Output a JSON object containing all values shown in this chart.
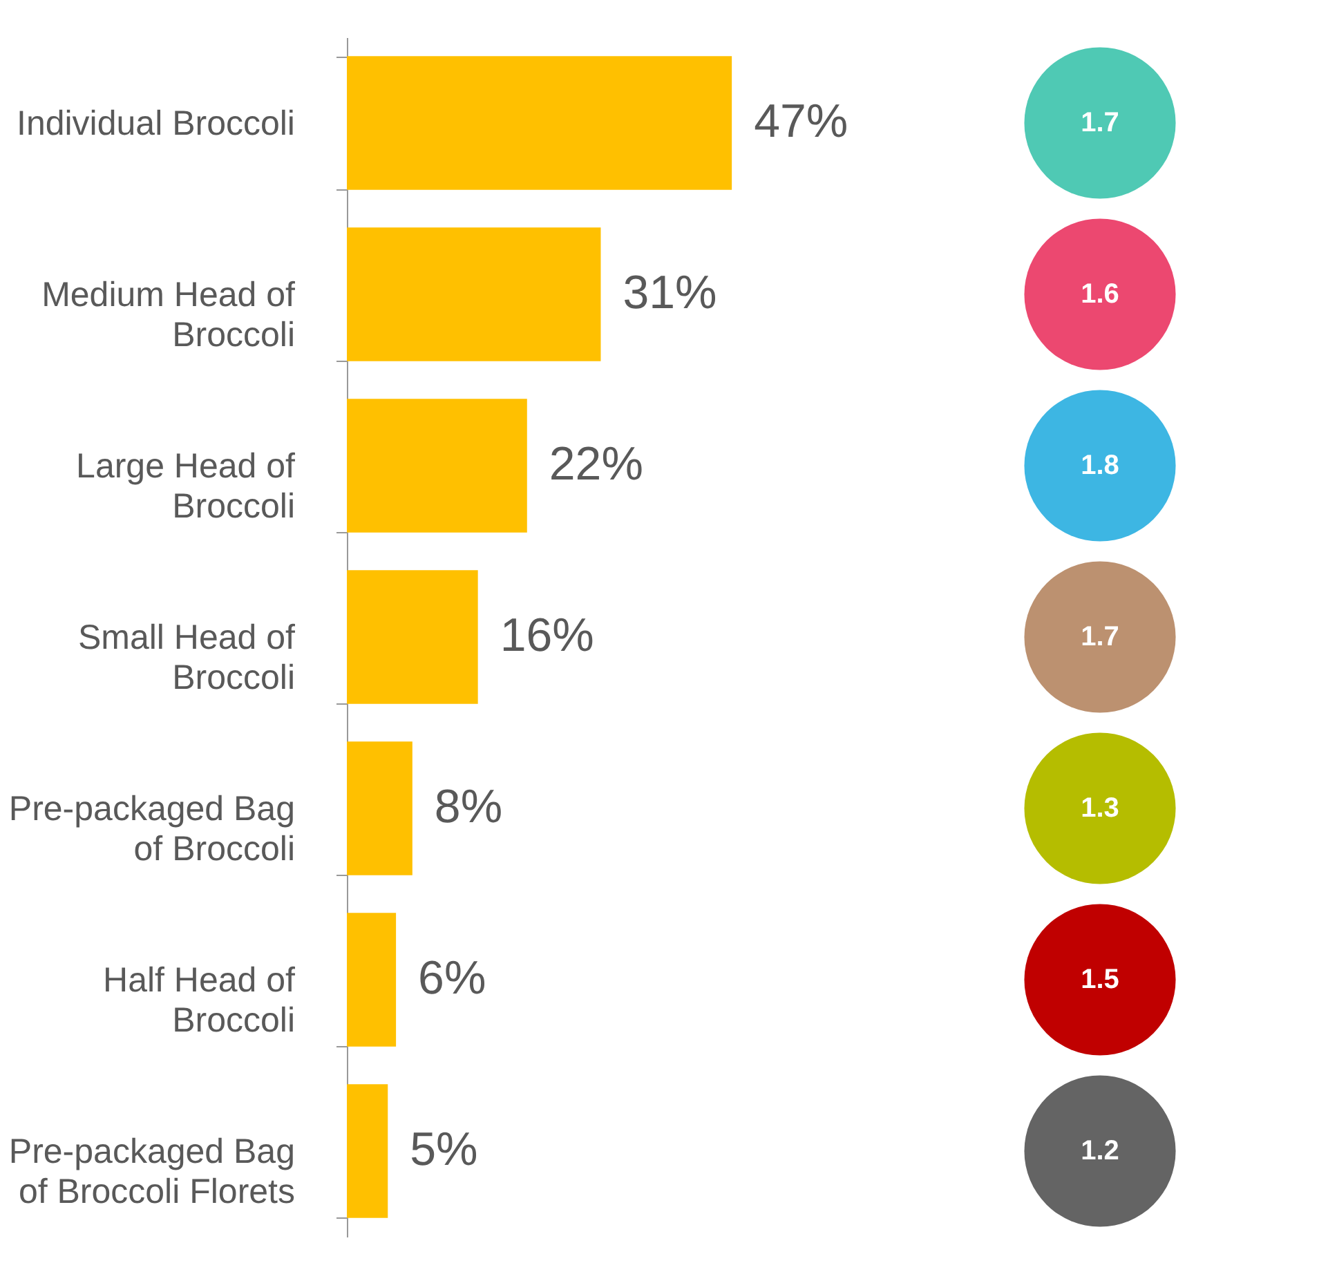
{
  "chart_data": [
    {
      "type": "bar",
      "orientation": "horizontal",
      "categories": [
        "Individual Broccoli",
        "Medium Head of\nBroccoli",
        "Large Head of\nBroccoli",
        "Small Head of\nBroccoli",
        "Pre-packaged Bag\nof Broccoli",
        "Half Head of\nBroccoli",
        "Pre-packaged Bag\nof Broccoli Florets"
      ],
      "values": [
        47,
        31,
        22,
        16,
        8,
        6,
        5
      ],
      "color": "#ffc000",
      "tick_labels": "y",
      "value_labels": [
        "47%",
        "31%",
        "22%",
        "16%",
        "8%",
        "6%",
        "5%"
      ]
    },
    {
      "type": "other",
      "categories": [
        null,
        null,
        null,
        null,
        null,
        null,
        null
      ],
      "values": [
        1.7,
        1.6,
        1.8,
        1.7,
        1.3,
        1.5,
        1.2
      ],
      "colors": [
        "#4fc9b4",
        "#ec4870",
        "#3db6e3",
        "#bc9170",
        "#b5bd00",
        "#c00000",
        "#646464"
      ],
      "data_labels": true
    }
  ]
}
